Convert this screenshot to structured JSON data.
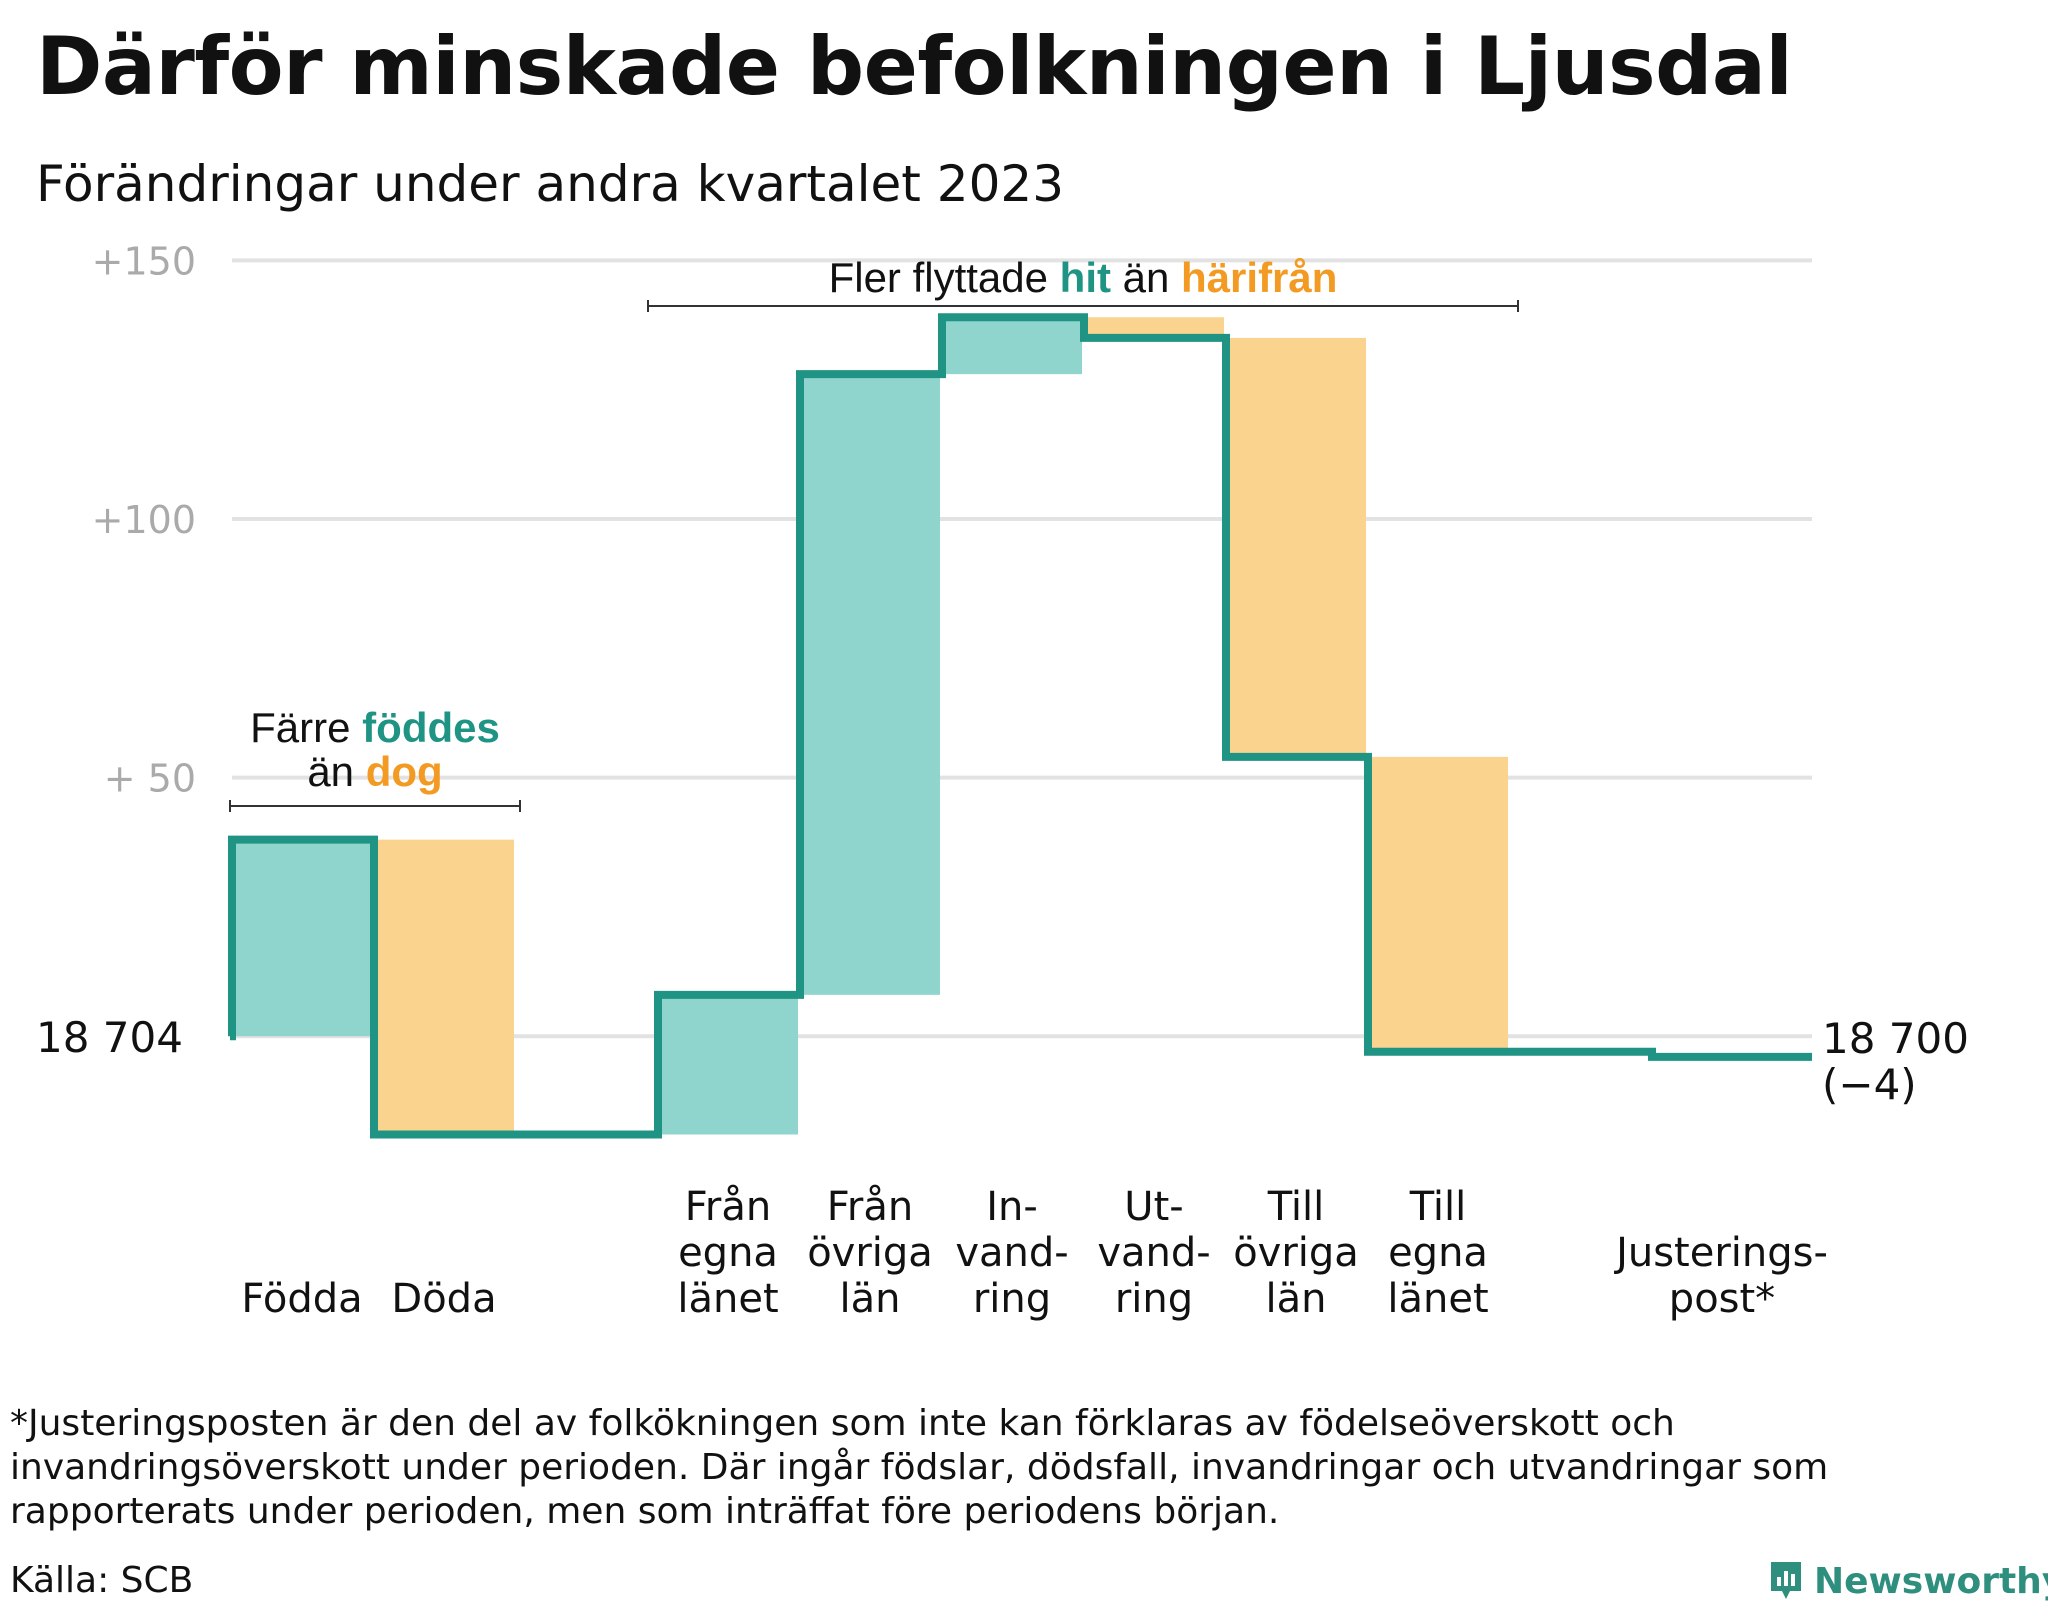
{
  "title": "Därför minskade befolkningen i Ljusdal",
  "subtitle": "Förändringar under andra kvartalet 2023",
  "footnote": "*Justeringsposten är den del av folkökningen som inte kan förklaras av födelseöverskott och invandringsöverskott under perioden. Där ingår födslar, dödsfall, invandringar och utvandringar som rapporterats under perioden, men som inträffat före periodens början.",
  "source": "Källa: SCB",
  "brand": "Newsworthy",
  "colors": {
    "increase": "#8fd5cd",
    "decrease": "#fad48e",
    "line": "#1f9484",
    "accent_teal": "#1f9484",
    "accent_orange": "#f29a22",
    "grid": "#e2e2e2",
    "tick": "#aaaaaa"
  },
  "chart_data": {
    "type": "waterfall",
    "title": "Därför minskade befolkningen i Ljusdal",
    "subtitle": "Förändringar under andra kvartalet 2023",
    "baseline_value": 18704,
    "baseline_label": "18  704",
    "end_value": 18700,
    "end_label": "18 700",
    "end_change_label": "(−4)",
    "yticks": [
      {
        "value": 150,
        "label": "+150"
      },
      {
        "value": 100,
        "label": "+100"
      },
      {
        "value": 50,
        "label": "+  50"
      },
      {
        "value": 0,
        "label": ""
      }
    ],
    "ylim": [
      -22,
      152
    ],
    "grid": true,
    "steps": [
      {
        "category": "Födda",
        "label_lines": [
          "Födda"
        ],
        "change": 38,
        "kind": "increase",
        "column": 0
      },
      {
        "category": "Döda",
        "label_lines": [
          "Döda"
        ],
        "change": -57,
        "kind": "decrease",
        "column": 1
      },
      {
        "category": "Från egna länet",
        "label_lines": [
          "Från",
          "egna",
          "länet"
        ],
        "change": 27,
        "kind": "increase",
        "column": 3
      },
      {
        "category": "Från övriga län",
        "label_lines": [
          "Från",
          "övriga",
          "län"
        ],
        "change": 120,
        "kind": "increase",
        "column": 4
      },
      {
        "category": "Invandring",
        "label_lines": [
          "In-",
          "vand-",
          "ring"
        ],
        "change": 11,
        "kind": "increase",
        "column": 5
      },
      {
        "category": "Utvandring",
        "label_lines": [
          "Ut-",
          "vand-",
          "ring"
        ],
        "change": -4,
        "kind": "decrease",
        "column": 6
      },
      {
        "category": "Till övriga län",
        "label_lines": [
          "Till",
          "övriga",
          "län"
        ],
        "change": -81,
        "kind": "decrease",
        "column": 7
      },
      {
        "category": "Till egna länet",
        "label_lines": [
          "Till",
          "egna",
          "länet"
        ],
        "change": -57,
        "kind": "decrease",
        "column": 8
      },
      {
        "category": "Justeringspost*",
        "label_lines": [
          "Justerings-",
          "post*"
        ],
        "change": -1,
        "kind": "adjustment",
        "column": 10
      }
    ],
    "annotations": [
      {
        "parts": [
          {
            "text": "Färre ",
            "color": "dark"
          },
          {
            "text": "föddes",
            "color": "teal"
          }
        ],
        "line2": [
          {
            "text": "än ",
            "color": "dark"
          },
          {
            "text": "dog",
            "color": "orange"
          }
        ],
        "spans": [
          0,
          1
        ]
      },
      {
        "parts": [
          {
            "text": "Fler flyttade ",
            "color": "dark"
          },
          {
            "text": "hit",
            "color": "teal"
          },
          {
            "text": " än ",
            "color": "dark"
          },
          {
            "text": "härifrån",
            "color": "orange"
          }
        ],
        "spans": [
          3,
          8
        ]
      }
    ]
  }
}
